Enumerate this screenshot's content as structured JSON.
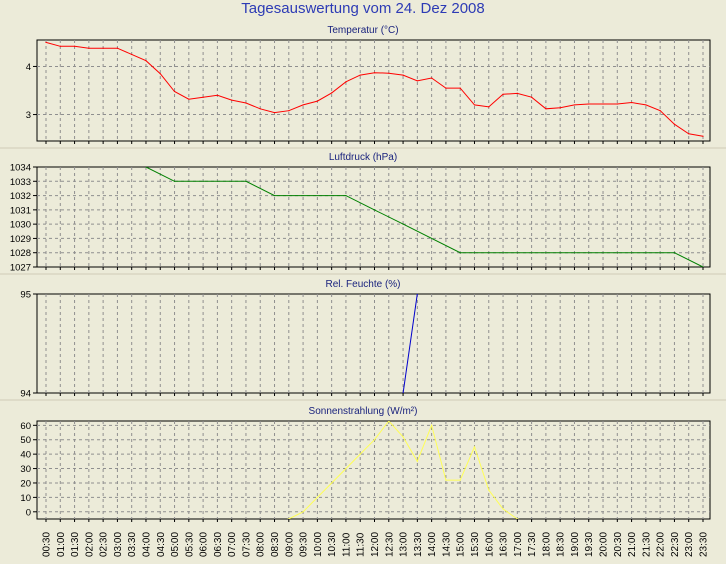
{
  "page": {
    "title": "Tagesauswertung vom 24. Dez 2008"
  },
  "x_ticks": [
    "00:30",
    "01:00",
    "01:30",
    "02:00",
    "02:30",
    "03:00",
    "03:30",
    "04:00",
    "04:30",
    "05:00",
    "05:30",
    "06:00",
    "06:30",
    "07:00",
    "07:30",
    "08:00",
    "08:30",
    "09:00",
    "09:30",
    "10:00",
    "10:30",
    "11:00",
    "11:30",
    "12:00",
    "12:30",
    "13:00",
    "13:30",
    "14:00",
    "14:30",
    "15:00",
    "15:30",
    "16:00",
    "16:30",
    "17:00",
    "17:30",
    "18:00",
    "18:30",
    "19:00",
    "19:30",
    "20:00",
    "20:30",
    "21:00",
    "21:30",
    "22:00",
    "22:30",
    "23:00",
    "23:30"
  ],
  "chart_data": [
    {
      "type": "line",
      "title": "Temperatur (°C)",
      "color": "#ff0000",
      "ylim": [
        2.45,
        4.55
      ],
      "yticks": [
        3,
        4
      ],
      "x": [
        "00:30",
        "01:00",
        "01:30",
        "02:00",
        "02:30",
        "03:00",
        "03:30",
        "04:00",
        "04:30",
        "05:00",
        "05:30",
        "06:00",
        "06:30",
        "07:00",
        "07:30",
        "08:00",
        "08:30",
        "09:00",
        "09:30",
        "10:00",
        "10:30",
        "11:00",
        "11:30",
        "12:00",
        "12:30",
        "13:00",
        "13:30",
        "14:00",
        "14:30",
        "15:00",
        "15:30",
        "16:00",
        "16:30",
        "17:00",
        "17:30",
        "18:00",
        "18:30",
        "19:00",
        "19:30",
        "20:00",
        "20:30",
        "21:00",
        "21:30",
        "22:00",
        "22:30",
        "23:00",
        "23:30"
      ],
      "values": [
        4.5,
        4.42,
        4.42,
        4.38,
        4.38,
        4.38,
        4.25,
        4.12,
        3.85,
        3.48,
        3.32,
        3.36,
        3.4,
        3.3,
        3.24,
        3.12,
        3.04,
        3.08,
        3.2,
        3.28,
        3.45,
        3.68,
        3.82,
        3.87,
        3.86,
        3.82,
        3.7,
        3.76,
        3.55,
        3.55,
        3.2,
        3.16,
        3.42,
        3.44,
        3.36,
        3.12,
        3.14,
        3.2,
        3.22,
        3.22,
        3.22,
        3.25,
        3.2,
        3.08,
        2.8,
        2.6,
        2.55
      ]
    },
    {
      "type": "line",
      "title": "Luftdruck (hPa)",
      "color": "#008000",
      "ylim": [
        1027,
        1034
      ],
      "yticks": [
        1027,
        1028,
        1029,
        1030,
        1031,
        1032,
        1033,
        1034
      ],
      "x": [
        "04:00",
        "05:00",
        "07:30",
        "08:30",
        "11:00",
        "12:00",
        "13:00",
        "15:00",
        "22:30",
        "23:30"
      ],
      "values": [
        1034,
        1033,
        1033,
        1032,
        1032,
        1031,
        1030,
        1028,
        1028,
        1027
      ]
    },
    {
      "type": "line",
      "title": "Rel. Feuchte (%)",
      "color": "#0000cc",
      "ylim": [
        94,
        95
      ],
      "yticks": [
        94,
        95
      ],
      "x": [
        "13:00",
        "13:30"
      ],
      "values": [
        94,
        95
      ]
    },
    {
      "type": "line",
      "title": "Sonnenstrahlung (W/m²)",
      "color": "#ffff55",
      "ylim": [
        -5,
        63
      ],
      "yticks": [
        0,
        10,
        20,
        30,
        40,
        50,
        60
      ],
      "x": [
        "08:30",
        "09:00",
        "09:30",
        "10:00",
        "10:30",
        "11:00",
        "11:30",
        "12:00",
        "12:30",
        "13:00",
        "13:30",
        "14:00",
        "14:30",
        "15:00",
        "15:30",
        "16:00",
        "16:30",
        "17:00",
        "17:30"
      ],
      "values": [
        -8,
        -5,
        0,
        10,
        20,
        30,
        40,
        50,
        63,
        52,
        35,
        60,
        22,
        22,
        45,
        15,
        2,
        -5,
        -8
      ]
    }
  ]
}
